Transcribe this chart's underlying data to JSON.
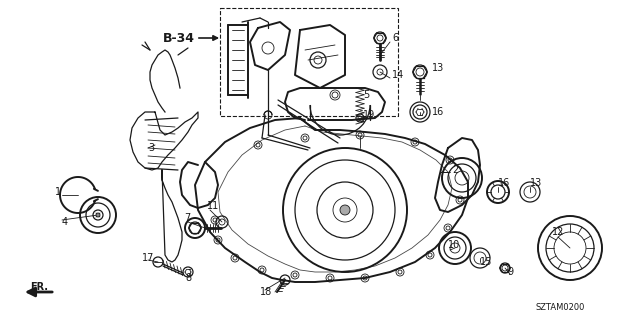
{
  "bg_color": "#ffffff",
  "lc": "#1a1a1a",
  "label_b34": "B-34",
  "label_fr": "FR.",
  "label_code": "SZTAM0200",
  "figsize": [
    6.4,
    3.2
  ],
  "dpi": 100,
  "labels": [
    [
      148,
      252,
      "3"
    ],
    [
      60,
      192,
      "1"
    ],
    [
      62,
      218,
      "4"
    ],
    [
      397,
      45,
      "6"
    ],
    [
      397,
      78,
      "14"
    ],
    [
      367,
      97,
      "5"
    ],
    [
      367,
      112,
      "19"
    ],
    [
      436,
      78,
      "13"
    ],
    [
      436,
      112,
      "16"
    ],
    [
      449,
      175,
      "2"
    ],
    [
      496,
      185,
      "16"
    ],
    [
      530,
      185,
      "13"
    ],
    [
      186,
      222,
      "7"
    ],
    [
      207,
      210,
      "11"
    ],
    [
      145,
      258,
      "17"
    ],
    [
      185,
      272,
      "8"
    ],
    [
      260,
      288,
      "18"
    ],
    [
      448,
      248,
      "10"
    ],
    [
      480,
      262,
      "15"
    ],
    [
      508,
      272,
      "9"
    ],
    [
      555,
      235,
      "12"
    ]
  ]
}
